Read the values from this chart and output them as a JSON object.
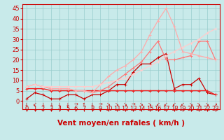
{
  "x": [
    0,
    1,
    2,
    3,
    4,
    5,
    6,
    7,
    8,
    9,
    10,
    11,
    12,
    13,
    14,
    15,
    16,
    17,
    18,
    19,
    20,
    21,
    22,
    23
  ],
  "series": [
    {
      "name": "darkred_spiky",
      "color": "#cc0000",
      "linewidth": 0.9,
      "marker": "+",
      "markersize": 3,
      "values": [
        1,
        4,
        3,
        1,
        1,
        3,
        3,
        1,
        3,
        3,
        5,
        8,
        8,
        14,
        18,
        18,
        21,
        23,
        6,
        8,
        8,
        11,
        4,
        3
      ]
    },
    {
      "name": "red_flat",
      "color": "#ee2222",
      "linewidth": 1.0,
      "marker": "+",
      "markersize": 3,
      "values": [
        6,
        6,
        6,
        5,
        5,
        5,
        5,
        5,
        5,
        5,
        5,
        5,
        5,
        5,
        5,
        5,
        5,
        5,
        5,
        5,
        5,
        5,
        5,
        3
      ]
    },
    {
      "name": "salmon_medium",
      "color": "#ff7777",
      "linewidth": 0.9,
      "marker": "+",
      "markersize": 3,
      "values": [
        7,
        8,
        7,
        6,
        6,
        6,
        5,
        5,
        4,
        5,
        7,
        10,
        13,
        16,
        19,
        24,
        29,
        20,
        20,
        21,
        22,
        29,
        29,
        20
      ]
    },
    {
      "name": "light_pink_peak",
      "color": "#ffaaaa",
      "linewidth": 0.9,
      "marker": "+",
      "markersize": 3,
      "values": [
        7,
        8,
        7,
        6,
        6,
        6,
        5,
        5,
        4,
        8,
        12,
        15,
        17,
        20,
        24,
        32,
        39,
        45,
        36,
        24,
        23,
        22,
        21,
        20
      ]
    },
    {
      "name": "lightest_linear",
      "color": "#ffcccc",
      "linewidth": 0.9,
      "marker": "+",
      "markersize": 3,
      "values": [
        7,
        8,
        7,
        7,
        7,
        7,
        7,
        7,
        7,
        8,
        9,
        10,
        11,
        13,
        15,
        17,
        19,
        22,
        24,
        26,
        28,
        30,
        33,
        35
      ]
    }
  ],
  "wind_arrows": [
    "↓",
    "↙",
    "↓",
    "↓",
    "↓",
    "↓",
    "→",
    "↑",
    "↓",
    "→",
    "↘",
    "↘",
    "↘",
    "→",
    "↘",
    "↘",
    "↙",
    "↙",
    "↙",
    "↙",
    "↘",
    "↘",
    "↘",
    "↗"
  ],
  "xlim": [
    -0.5,
    23.5
  ],
  "ylim": [
    -4,
    47
  ],
  "yticks": [
    0,
    5,
    10,
    15,
    20,
    25,
    30,
    35,
    40,
    45
  ],
  "xticks": [
    0,
    1,
    2,
    3,
    4,
    5,
    6,
    7,
    8,
    9,
    10,
    11,
    12,
    13,
    14,
    15,
    16,
    17,
    18,
    19,
    20,
    21,
    22,
    23
  ],
  "xlabel": "Vent moyen/en rafales ( km/h )",
  "background_color": "#c8eaea",
  "grid_color": "#99cccc",
  "axis_color": "#cc0000",
  "label_color": "#cc0000",
  "tick_color": "#cc0000",
  "xlabel_fontsize": 7.5,
  "tick_fontsize": 6,
  "arrow_fontsize": 5
}
